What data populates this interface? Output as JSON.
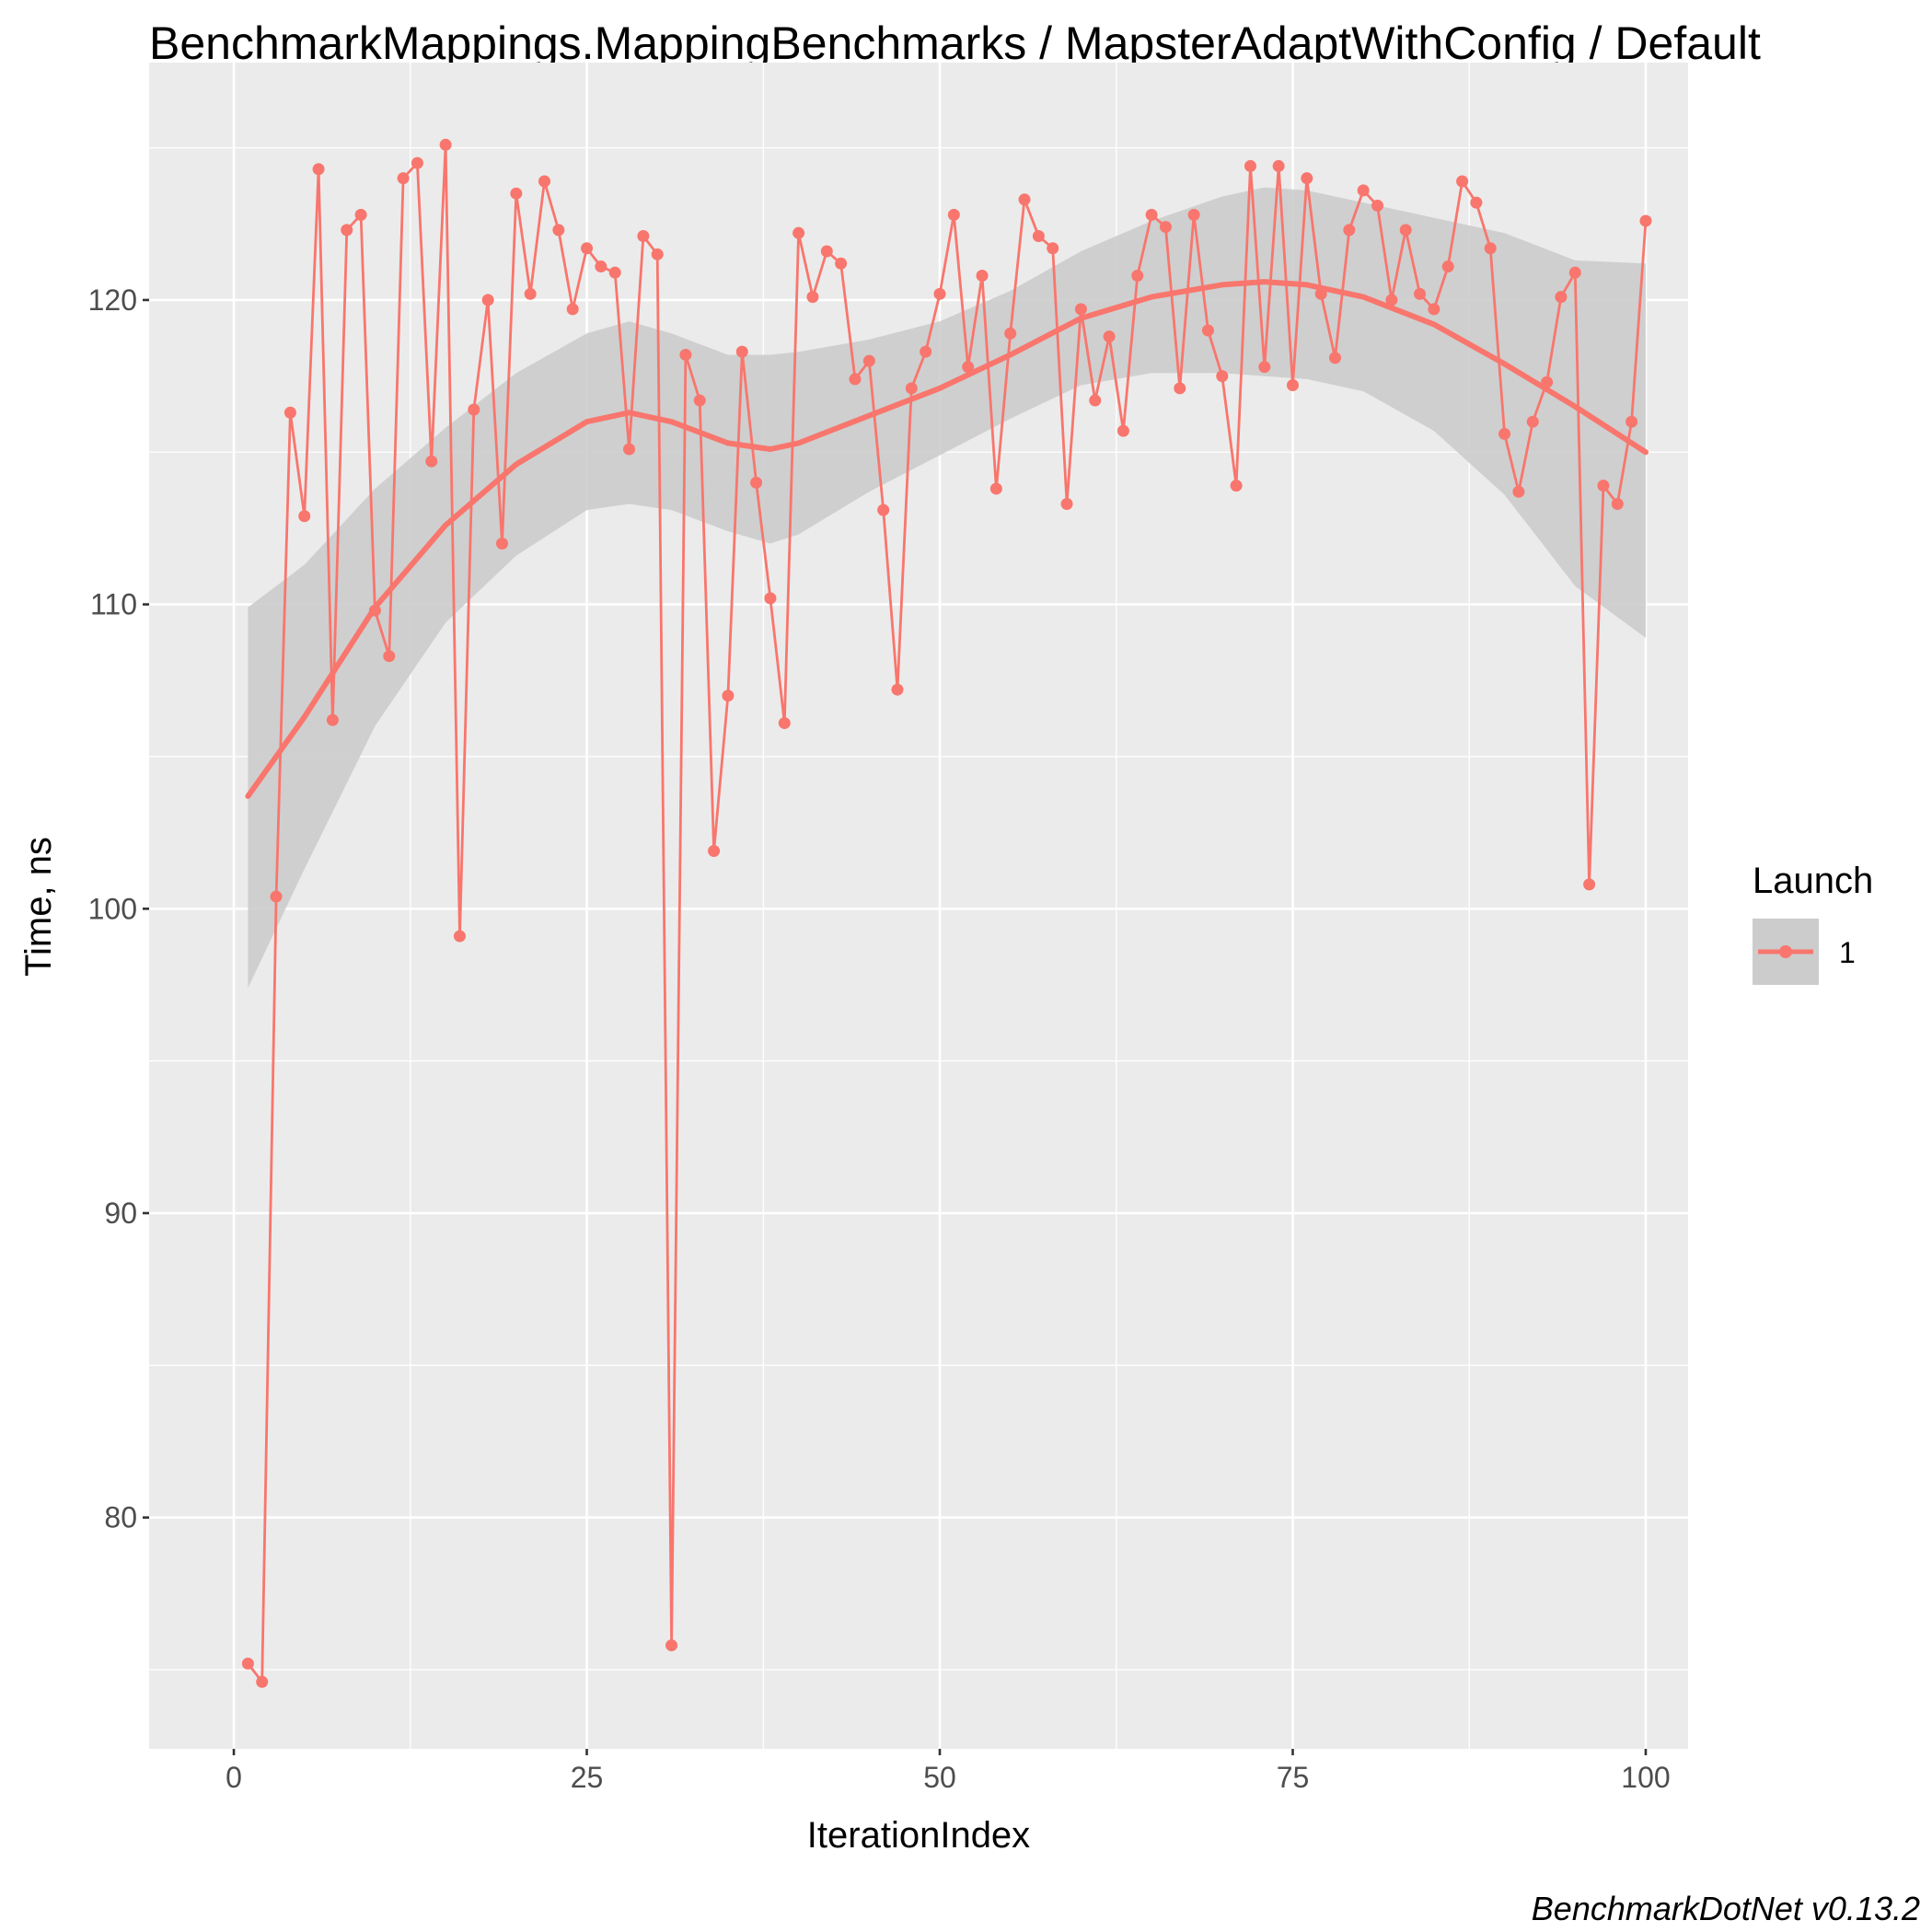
{
  "chart_data": {
    "type": "line",
    "title": "BenchmarkMappings.MappingBenchmarks / MapsterAdaptWithConfig / Default",
    "xlabel": "IterationIndex",
    "ylabel": "Time, ns",
    "caption": "BenchmarkDotNet v0.13.2",
    "xlim": [
      -6,
      103
    ],
    "ylim": [
      72.4,
      127.8
    ],
    "x_ticks": [
      0,
      25,
      50,
      75,
      100
    ],
    "x_tick_labels": [
      "0",
      "25",
      "50",
      "75",
      "100"
    ],
    "y_ticks": [
      80,
      90,
      100,
      110,
      120
    ],
    "y_tick_labels": [
      "80",
      "90",
      "100",
      "110",
      "120"
    ],
    "grid": true,
    "legend": {
      "title": "Launch",
      "position": "right",
      "entries": [
        "1"
      ]
    },
    "colors": {
      "series": "#f8766d",
      "panel": "#ebebeb",
      "band": "#cccccc",
      "grid": "#ffffff"
    },
    "series": [
      {
        "name": "1",
        "x": [
          1,
          2,
          3,
          4,
          5,
          6,
          7,
          8,
          9,
          10,
          11,
          12,
          13,
          14,
          15,
          16,
          17,
          18,
          19,
          20,
          21,
          22,
          23,
          24,
          25,
          26,
          27,
          28,
          29,
          30,
          31,
          32,
          33,
          34,
          35,
          36,
          37,
          38,
          39,
          40,
          41,
          42,
          43,
          44,
          45,
          46,
          47,
          48,
          49,
          50,
          51,
          52,
          53,
          54,
          55,
          56,
          57,
          58,
          59,
          60,
          61,
          62,
          63,
          64,
          65,
          66,
          67,
          68,
          69,
          70,
          71,
          72,
          73,
          74,
          75,
          76,
          77,
          78,
          79,
          80,
          81,
          82,
          83,
          84,
          85,
          86,
          87,
          88,
          89,
          90,
          91,
          92,
          93,
          94,
          95,
          96,
          97,
          98,
          99,
          100
        ],
        "y": [
          75.2,
          74.6,
          100.4,
          116.3,
          112.9,
          124.3,
          106.2,
          122.3,
          122.8,
          109.8,
          108.3,
          124.0,
          124.5,
          114.7,
          125.1,
          99.1,
          116.4,
          120.0,
          112.0,
          123.5,
          120.2,
          123.9,
          122.3,
          119.7,
          121.7,
          121.1,
          120.9,
          115.1,
          122.1,
          121.5,
          75.8,
          118.2,
          116.7,
          101.9,
          107.0,
          118.3,
          114.0,
          110.2,
          106.1,
          122.2,
          120.1,
          121.6,
          121.2,
          117.4,
          118.0,
          113.1,
          107.2,
          117.1,
          118.3,
          120.2,
          122.8,
          117.8,
          120.8,
          113.8,
          118.9,
          123.3,
          122.1,
          121.7,
          113.3,
          119.7,
          116.7,
          118.8,
          115.7,
          120.8,
          122.8,
          122.4,
          117.1,
          122.8,
          119.0,
          117.5,
          113.9,
          124.4,
          117.8,
          124.4,
          117.2,
          124.0,
          120.2,
          118.1,
          122.3,
          123.6,
          123.1,
          120.0,
          122.3,
          120.2,
          119.7,
          121.1,
          123.9,
          123.2,
          121.7,
          115.6,
          113.7,
          116.0,
          117.3,
          120.1,
          120.9,
          100.8,
          113.9,
          113.3,
          116.0,
          122.6
        ]
      }
    ],
    "smooth": {
      "x": [
        1,
        5,
        10,
        15,
        20,
        25,
        28,
        31,
        35,
        38,
        40,
        45,
        50,
        55,
        60,
        65,
        70,
        73,
        76,
        80,
        85,
        90,
        95,
        100
      ],
      "y": [
        103.7,
        106.3,
        109.9,
        112.6,
        114.6,
        116.0,
        116.3,
        116.0,
        115.3,
        115.1,
        115.3,
        116.2,
        117.1,
        118.2,
        119.4,
        120.1,
        120.5,
        120.6,
        120.5,
        120.1,
        119.2,
        117.9,
        116.5,
        115.0
      ],
      "ymin": [
        97.4,
        101.3,
        106.0,
        109.4,
        111.6,
        113.1,
        113.3,
        113.1,
        112.4,
        112.0,
        112.3,
        113.7,
        114.9,
        116.1,
        117.2,
        117.6,
        117.6,
        117.5,
        117.4,
        117.0,
        115.7,
        113.6,
        110.6,
        108.9
      ],
      "ymax": [
        109.9,
        111.3,
        113.8,
        115.8,
        117.6,
        118.9,
        119.3,
        118.9,
        118.2,
        118.2,
        118.3,
        118.7,
        119.3,
        120.3,
        121.6,
        122.6,
        123.4,
        123.7,
        123.6,
        123.2,
        122.7,
        122.2,
        121.3,
        121.2
      ]
    }
  }
}
